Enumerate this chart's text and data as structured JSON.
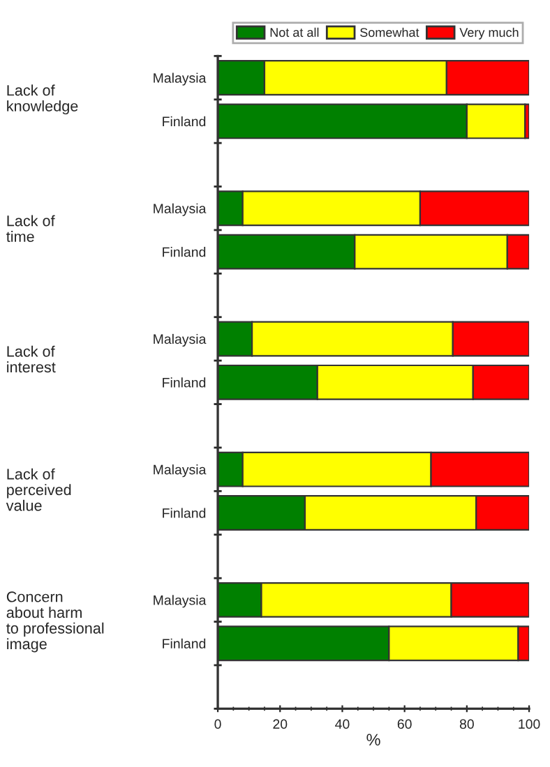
{
  "chart_data": {
    "type": "bar",
    "orientation": "horizontal",
    "stacked": true,
    "xlabel": "%",
    "categories": [
      "Malaysia",
      "Finland",
      null,
      "Malaysia",
      "Finland",
      null,
      "Malaysia",
      "Finland",
      null,
      "Malaysia",
      "Finland",
      null,
      "Malaysia",
      "Finland",
      null
    ],
    "series": [
      {
        "name": "Not at all",
        "color": "#008000",
        "values": [
          15,
          80,
          null,
          8,
          44,
          null,
          11,
          32,
          null,
          8,
          28,
          null,
          14,
          55,
          null
        ]
      },
      {
        "name": "Somewhat",
        "color": "#ffff00",
        "values": [
          58.5,
          18.7,
          null,
          57,
          49,
          null,
          64.5,
          50,
          null,
          60.5,
          55,
          null,
          61,
          41.5,
          null
        ]
      },
      {
        "name": "Very much",
        "color": "#ff0000",
        "values": [
          26.5,
          1.3,
          null,
          35,
          7,
          null,
          24.5,
          18,
          null,
          31.5,
          17,
          null,
          25,
          3.5,
          null
        ]
      }
    ],
    "annotations": [
      "Lack of\nknowledge",
      "Lack of\ntime",
      "Lack of\ninterest",
      "Lack of\nperceived\nvalue",
      "Concern\nabout harm\nto professional\nimage"
    ],
    "xlim": [
      0,
      100
    ],
    "xticks": [
      0,
      20,
      40,
      60,
      80,
      100
    ],
    "grid": false,
    "legend": "top"
  }
}
